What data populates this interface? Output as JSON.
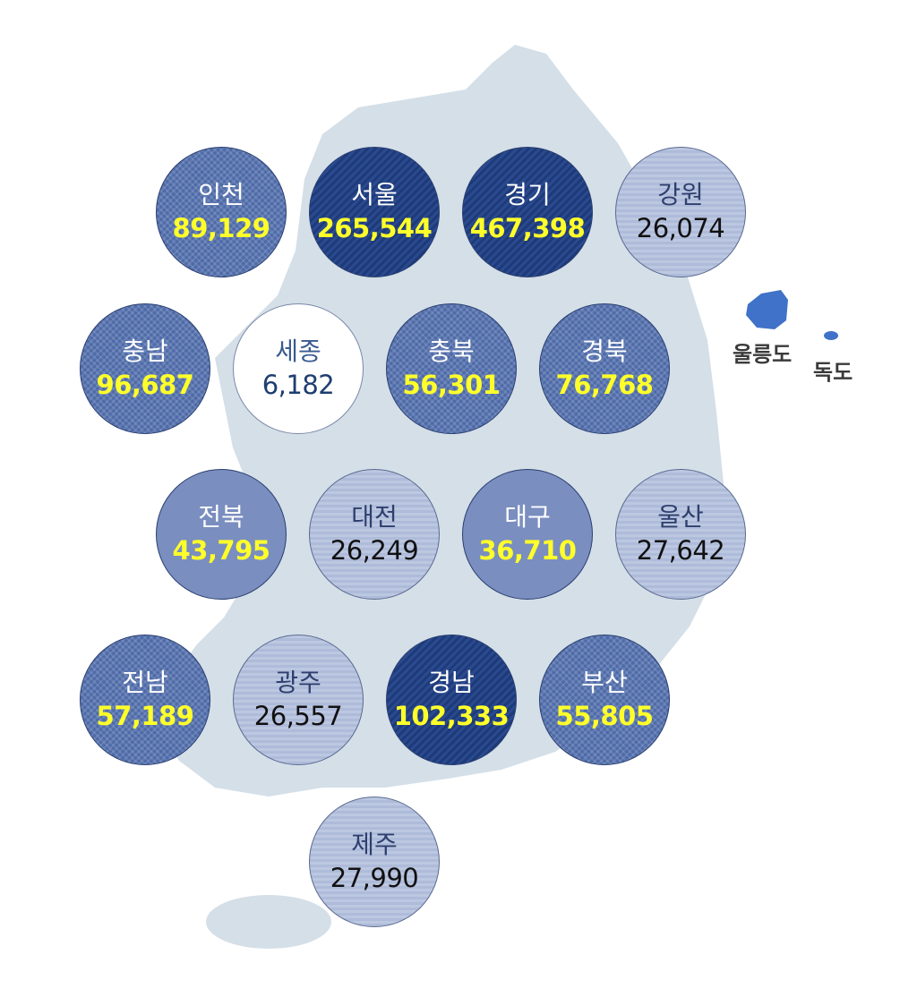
{
  "regions": [
    {
      "name": "인천",
      "value": "89,129",
      "style": "check"
    },
    {
      "name": "서울",
      "value": "265,544",
      "style": "dark"
    },
    {
      "name": "경기",
      "value": "467,398",
      "style": "dark"
    },
    {
      "name": "강원",
      "value": "26,074",
      "style": "light"
    },
    {
      "name": "충남",
      "value": "96,687",
      "style": "check"
    },
    {
      "name": "세종",
      "value": "6,182",
      "style": "white"
    },
    {
      "name": "충북",
      "value": "56,301",
      "style": "check"
    },
    {
      "name": "경북",
      "value": "76,768",
      "style": "check"
    },
    {
      "name": "전북",
      "value": "43,795",
      "style": "solid"
    },
    {
      "name": "대전",
      "value": "26,249",
      "style": "light"
    },
    {
      "name": "대구",
      "value": "36,710",
      "style": "solid"
    },
    {
      "name": "울산",
      "value": "27,642",
      "style": "light"
    },
    {
      "name": "전남",
      "value": "57,189",
      "style": "check"
    },
    {
      "name": "광주",
      "value": "26,557",
      "style": "light"
    },
    {
      "name": "경남",
      "value": "102,333",
      "style": "dark"
    },
    {
      "name": "부산",
      "value": "55,805",
      "style": "check"
    },
    {
      "name": "제주",
      "value": "27,990",
      "style": "light"
    }
  ],
  "islands": {
    "ulleung": "울릉도",
    "dokdo": "독도"
  },
  "colors": {
    "map": "#d4dfe8",
    "island": "#3f72c8",
    "dark": "#1e3a78",
    "check": "#4d6aa8",
    "solid": "#7a8ebf",
    "light": "#b4c1dd",
    "value_highlight": "#ffff2a"
  }
}
